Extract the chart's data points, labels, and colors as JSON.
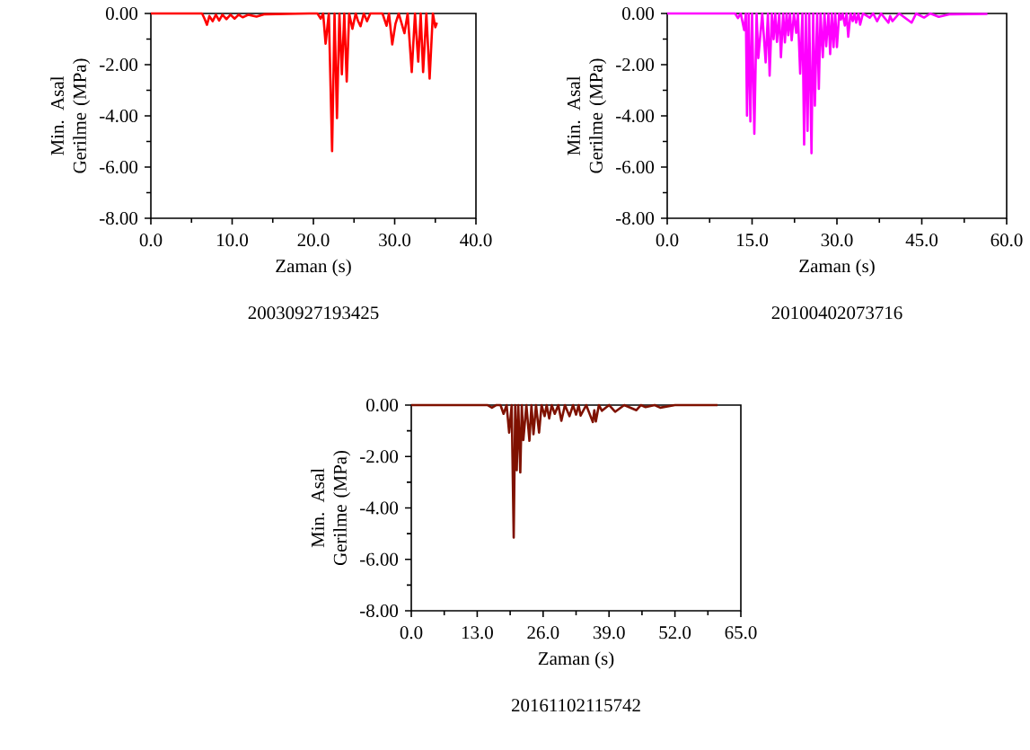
{
  "chart_data": [
    {
      "type": "line",
      "title": "20030927193425",
      "xlabel": "Zaman (s)",
      "ylabel": "Min. Asal Gerilme (MPa)",
      "color": "#ff0000",
      "x": [
        0,
        6.3,
        6.6,
        6.9,
        7.2,
        7.6,
        8.0,
        8.4,
        8.8,
        9.3,
        9.8,
        10.3,
        10.8,
        11.3,
        12,
        13,
        14,
        19.5,
        20.5,
        20.9,
        21.2,
        21.5,
        21.9,
        22.3,
        22.6,
        22.9,
        23.2,
        23.5,
        23.8,
        24.1,
        24.4,
        24.8,
        25.2,
        25.5,
        25.8,
        26.2,
        26.6,
        27,
        28.5,
        29,
        29.3,
        29.7,
        30.1,
        30.5,
        31.2,
        31.6,
        32.1,
        32.5,
        32.9,
        33.2,
        33.5,
        33.9,
        34.3,
        34.7,
        35.0,
        35.2
      ],
      "values": [
        0,
        0,
        -0.2,
        -0.44,
        -0.1,
        -0.3,
        -0.05,
        -0.28,
        -0.05,
        -0.22,
        -0.05,
        -0.2,
        -0.05,
        -0.15,
        -0.05,
        -0.12,
        -0.03,
        0,
        0,
        -0.2,
        0,
        -1.18,
        0,
        -5.38,
        0,
        -4.09,
        0,
        -2.38,
        0,
        -2.66,
        0,
        -0.6,
        0,
        -0.3,
        -0.5,
        0,
        -0.3,
        0,
        0,
        -0.48,
        0,
        -1.21,
        -0.4,
        0,
        -0.77,
        0,
        -2.29,
        0,
        -1.88,
        0,
        -2.29,
        0,
        -2.54,
        0,
        -0.54,
        -0.36
      ],
      "xlim": [
        0,
        40
      ],
      "ylim": [
        -8,
        0
      ],
      "xticks": [
        {
          "value": 0,
          "label": "0.0"
        },
        {
          "value": 5,
          "label": null
        },
        {
          "value": 10,
          "label": "10.0"
        },
        {
          "value": 15,
          "label": null
        },
        {
          "value": 20,
          "label": "20.0"
        },
        {
          "value": 25,
          "label": null
        },
        {
          "value": 30,
          "label": "30.0"
        },
        {
          "value": 35,
          "label": null
        },
        {
          "value": 40,
          "label": "40.0"
        }
      ],
      "yticks": [
        {
          "value": -8,
          "label": "-8.00"
        },
        {
          "value": -7,
          "label": null
        },
        {
          "value": -6,
          "label": "-6.00"
        },
        {
          "value": -5,
          "label": null
        },
        {
          "value": -4,
          "label": "-4.00"
        },
        {
          "value": -3,
          "label": null
        },
        {
          "value": -2,
          "label": "-2.00"
        },
        {
          "value": -1,
          "label": null
        },
        {
          "value": 0,
          "label": "0.00"
        }
      ]
    },
    {
      "type": "line",
      "title": "20100402073716",
      "xlabel": "Zaman (s)",
      "ylabel": "Min. Asal Gerilme (MPa)",
      "color": "#ff00ff",
      "x": [
        0,
        12,
        12.5,
        13,
        13.6,
        13.9,
        14.1,
        14.4,
        14.7,
        15.0,
        15.4,
        15.8,
        16.1,
        16.8,
        17.4,
        17.8,
        18.1,
        18.5,
        18.8,
        19.1,
        19.4,
        19.8,
        20.1,
        20.5,
        20.8,
        21.1,
        21.4,
        21.7,
        22.0,
        22.4,
        22.8,
        23.1,
        23.5,
        23.9,
        24.2,
        24.5,
        24.8,
        25.1,
        25.5,
        25.8,
        26.1,
        26.5,
        26.8,
        27.1,
        27.5,
        27.8,
        28.1,
        28.5,
        28.8,
        29.1,
        29.4,
        29.7,
        30.0,
        30.4,
        30.7,
        31.0,
        31.4,
        31.7,
        32.0,
        32.4,
        32.8,
        33.1,
        33.4,
        33.8,
        34.1,
        34.6,
        35.8,
        36.4,
        37.1,
        37.8,
        39.1,
        39.4,
        39.8,
        41,
        43.2,
        44,
        45.4,
        46.5,
        48.0,
        50,
        56.6
      ],
      "values": [
        0,
        0,
        -0.18,
        0,
        -0.65,
        0,
        -3.99,
        0,
        -4.22,
        0,
        -4.7,
        0,
        -1.74,
        0,
        -1.91,
        0,
        -2.43,
        0,
        -1.01,
        0,
        -1.11,
        0,
        -1.71,
        0,
        -1.13,
        0,
        -0.85,
        0,
        -1.05,
        0,
        -0.76,
        0,
        -2.35,
        0,
        -5.12,
        0,
        -4.59,
        0,
        -5.46,
        0,
        -3.6,
        0,
        -2.95,
        0,
        -1.71,
        0,
        -1.28,
        0,
        -1.59,
        0,
        -1.31,
        0,
        -1.31,
        0,
        -0.24,
        0,
        -0.47,
        0,
        -0.91,
        0,
        -0.3,
        0,
        -0.36,
        0,
        -0.44,
        0,
        -0.16,
        0,
        -0.3,
        0,
        -0.36,
        -0.1,
        -0.3,
        0,
        -0.36,
        0,
        -0.16,
        0,
        -0.13,
        -0.03,
        -0.02
      ],
      "xlim": [
        0,
        60
      ],
      "ylim": [
        -8,
        0
      ],
      "xticks": [
        {
          "value": 0,
          "label": "0.0"
        },
        {
          "value": 7.5,
          "label": null
        },
        {
          "value": 15,
          "label": "15.0"
        },
        {
          "value": 22.5,
          "label": null
        },
        {
          "value": 30,
          "label": "30.0"
        },
        {
          "value": 37.5,
          "label": null
        },
        {
          "value": 45,
          "label": "45.0"
        },
        {
          "value": 52.5,
          "label": null
        },
        {
          "value": 60,
          "label": "60.0"
        }
      ],
      "yticks": [
        {
          "value": -8,
          "label": "-8.00"
        },
        {
          "value": -7,
          "label": null
        },
        {
          "value": -6,
          "label": "-6.00"
        },
        {
          "value": -5,
          "label": null
        },
        {
          "value": -4,
          "label": "-4.00"
        },
        {
          "value": -3,
          "label": null
        },
        {
          "value": -2,
          "label": "-2.00"
        },
        {
          "value": -1,
          "label": null
        },
        {
          "value": 0,
          "label": "0.00"
        }
      ]
    },
    {
      "type": "line",
      "title": "20161102115742",
      "xlabel": "Zaman (s)",
      "ylabel": "Min. Asal Gerilme (MPa)",
      "color": "#7f1100",
      "x": [
        0,
        15,
        15.9,
        16.8,
        17.6,
        18.2,
        18.8,
        19.3,
        19.8,
        20.2,
        20.5,
        20.8,
        21.1,
        21.5,
        21.8,
        22.1,
        22.7,
        23.3,
        23.7,
        24.1,
        24.6,
        25.2,
        25.7,
        26.3,
        26.7,
        27.2,
        27.7,
        28.3,
        29.0,
        29.6,
        30.3,
        31.2,
        31.9,
        32.5,
        33.0,
        33.4,
        34.5,
        35.8,
        36.1,
        36.4,
        37.0,
        37.6,
        39,
        40.2,
        42,
        44.4,
        45.3,
        46.2,
        48,
        49.1,
        52,
        60.4
      ],
      "values": [
        0,
        0,
        -0.1,
        0,
        0,
        -0.34,
        0,
        -1.07,
        0,
        -5.15,
        0,
        -2.53,
        0,
        -2.62,
        0,
        -1.36,
        0,
        -1.39,
        0,
        -1.13,
        0,
        -1.07,
        0,
        -0.43,
        0,
        -0.52,
        0,
        -0.34,
        0,
        -0.61,
        0,
        -0.43,
        0,
        -0.37,
        0,
        -0.41,
        0,
        -0.66,
        -0.2,
        -0.64,
        0,
        -0.22,
        0,
        -0.26,
        0,
        -0.2,
        0,
        -0.08,
        0,
        -0.1,
        0,
        0
      ],
      "xlim": [
        0,
        65
      ],
      "ylim": [
        -8,
        0
      ],
      "xticks": [
        {
          "value": 0,
          "label": "0.0"
        },
        {
          "value": 6.5,
          "label": null
        },
        {
          "value": 13,
          "label": "13.0"
        },
        {
          "value": 19.5,
          "label": null
        },
        {
          "value": 26,
          "label": "26.0"
        },
        {
          "value": 32.5,
          "label": null
        },
        {
          "value": 39,
          "label": "39.0"
        },
        {
          "value": 45.5,
          "label": null
        },
        {
          "value": 52,
          "label": "52.0"
        },
        {
          "value": 58.5,
          "label": null
        },
        {
          "value": 65,
          "label": "65.0"
        }
      ],
      "yticks": [
        {
          "value": -8,
          "label": "-8.00"
        },
        {
          "value": -7,
          "label": null
        },
        {
          "value": -6,
          "label": "-6.00"
        },
        {
          "value": -5,
          "label": null
        },
        {
          "value": -4,
          "label": "-4.00"
        },
        {
          "value": -3,
          "label": null
        },
        {
          "value": -2,
          "label": "-2.00"
        },
        {
          "value": -1,
          "label": null
        },
        {
          "value": 0,
          "label": "0.00"
        }
      ]
    }
  ]
}
